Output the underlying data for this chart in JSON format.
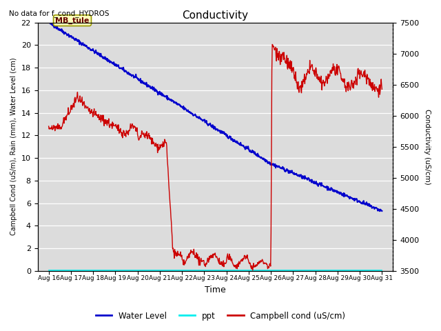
{
  "title": "Conductivity",
  "top_left_text": "No data for f_cond_HYDROS",
  "xlabel": "Time",
  "ylabel_left": "Campbell Cond (uS/m), Rain (mm), Water Level (cm)",
  "ylabel_right": "Conductivity (uS/cm)",
  "ylim_left": [
    0,
    22
  ],
  "ylim_right": [
    3500,
    7500
  ],
  "x_tick_labels": [
    "Aug 16",
    "Aug 17",
    "Aug 18",
    "Aug 19",
    "Aug 20",
    "Aug 21",
    "Aug 22",
    "Aug 23",
    "Aug 24",
    "Aug 25",
    "Aug 26",
    "Aug 27",
    "Aug 28",
    "Aug 29",
    "Aug 30",
    "Aug 31"
  ],
  "annotation_box": "MB_tule",
  "background_color": "#dcdcdc",
  "water_level_color": "#0000cc",
  "ppt_color": "#00eeee",
  "campbell_color": "#cc0000",
  "legend_labels": [
    "Water Level",
    "ppt",
    "Campbell cond (uS/cm)"
  ],
  "grid_color": "white",
  "yticks_left": [
    0,
    2,
    4,
    6,
    8,
    10,
    12,
    14,
    16,
    18,
    20,
    22
  ],
  "yticks_right": [
    3500,
    4000,
    4500,
    5000,
    5500,
    6000,
    6500,
    7000,
    7500
  ]
}
